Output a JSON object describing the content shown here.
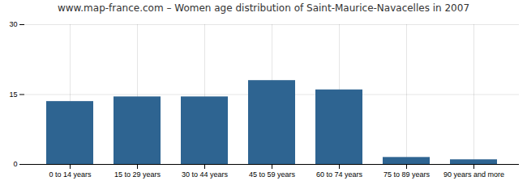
{
  "chart_data": {
    "type": "bar",
    "title": "www.map-france.com – Women age distribution of Saint-Maurice-Navacelles in 2007",
    "categories": [
      "0 to 14 years",
      "15 to 29 years",
      "30 to 44 years",
      "45 to 59 years",
      "60 to 74 years",
      "75 to 89 years",
      "90 years and more"
    ],
    "values": [
      13.5,
      14.5,
      14.5,
      18.0,
      16.0,
      1.5,
      1.0
    ],
    "color": "#2e6491",
    "ylim": [
      0,
      30
    ],
    "yticks": [
      0,
      15,
      30
    ],
    "grid": true
  }
}
